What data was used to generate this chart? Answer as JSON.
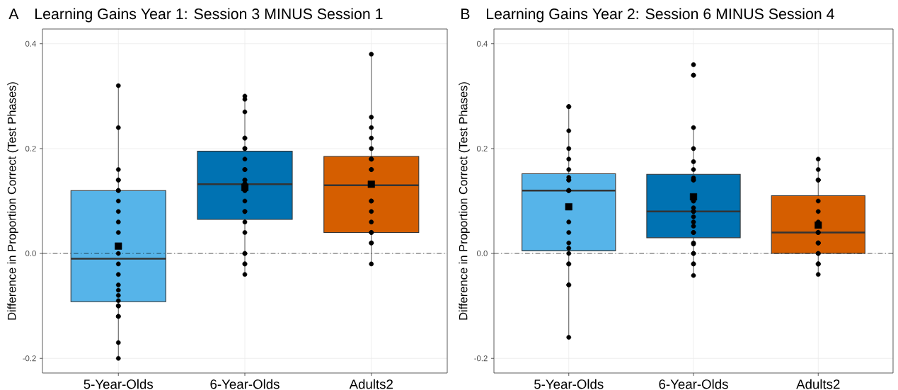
{
  "chart_data": [
    {
      "type": "box",
      "title": "Learning Gains Year 1: Session 3 MINUS Session 1",
      "annotations": [
        "A"
      ],
      "ylabel": "Difference in Proportion Correct (Test Phases)",
      "categories": [
        "5-Year-Olds",
        "6-Year-Olds",
        "Adults2"
      ],
      "colors": [
        "#56b4e9",
        "#0072b2",
        "#d55e00"
      ],
      "boxes": [
        {
          "low": -0.2,
          "q1": -0.092,
          "median": -0.01,
          "q3": 0.12,
          "high": 0.32,
          "mean": 0.014
        },
        {
          "low": -0.04,
          "q1": 0.065,
          "median": 0.132,
          "q3": 0.195,
          "high": 0.3,
          "mean": 0.126
        },
        {
          "low": -0.02,
          "q1": 0.04,
          "median": 0.13,
          "q3": 0.185,
          "high": 0.38,
          "mean": 0.132
        }
      ],
      "series": [
        {
          "type": "scatter",
          "color": "#000000",
          "marker": "circle",
          "x": [
            "5-Year-Olds",
            "5-Year-Olds",
            "5-Year-Olds",
            "5-Year-Olds",
            "5-Year-Olds",
            "5-Year-Olds",
            "5-Year-Olds",
            "5-Year-Olds",
            "5-Year-Olds",
            "5-Year-Olds",
            "5-Year-Olds",
            "5-Year-Olds",
            "5-Year-Olds",
            "5-Year-Olds",
            "5-Year-Olds",
            "5-Year-Olds",
            "5-Year-Olds",
            "5-Year-Olds",
            "5-Year-Olds",
            "5-Year-Olds",
            "5-Year-Olds",
            "5-Year-Olds",
            "5-Year-Olds",
            "5-Year-Olds",
            "6-Year-Olds",
            "6-Year-Olds",
            "6-Year-Olds",
            "6-Year-Olds",
            "6-Year-Olds",
            "6-Year-Olds",
            "6-Year-Olds",
            "6-Year-Olds",
            "6-Year-Olds",
            "6-Year-Olds",
            "6-Year-Olds",
            "6-Year-Olds",
            "6-Year-Olds",
            "6-Year-Olds",
            "6-Year-Olds",
            "6-Year-Olds",
            "6-Year-Olds",
            "6-Year-Olds",
            "6-Year-Olds",
            "6-Year-Olds",
            "6-Year-Olds",
            "6-Year-Olds",
            "6-Year-Olds",
            "6-Year-Olds",
            "6-Year-Olds",
            "6-Year-Olds",
            "Adults2",
            "Adults2",
            "Adults2",
            "Adults2",
            "Adults2",
            "Adults2",
            "Adults2",
            "Adults2",
            "Adults2",
            "Adults2",
            "Adults2",
            "Adults2",
            "Adults2",
            "Adults2",
            "Adults2",
            "Adults2",
            "Adults2",
            "Adults2",
            "Adults2"
          ],
          "values": [
            0.32,
            0.24,
            0.16,
            0.14,
            0.14,
            0.12,
            0.12,
            0.1,
            0.08,
            0.06,
            0.04,
            0.0,
            -0.02,
            -0.04,
            -0.06,
            -0.07,
            -0.08,
            -0.09,
            -0.1,
            -0.1,
            -0.12,
            -0.12,
            -0.17,
            -0.2,
            0.3,
            0.294,
            0.27,
            0.22,
            0.22,
            0.2,
            0.2,
            0.18,
            0.16,
            0.16,
            0.14,
            0.14,
            0.133,
            0.133,
            0.12,
            0.12,
            0.1,
            0.08,
            0.08,
            0.06,
            0.04,
            0.0,
            0.0,
            -0.02,
            -0.02,
            -0.04,
            0.38,
            0.26,
            0.24,
            0.22,
            0.2,
            0.18,
            0.18,
            0.18,
            0.16,
            0.16,
            0.1,
            0.1,
            0.08,
            0.06,
            0.04,
            0.04,
            0.02,
            0.02,
            -0.02
          ]
        }
      ],
      "ref_lines": [
        {
          "axis": "y",
          "value": 0,
          "line_style": "dashdot",
          "color": "#000000"
        }
      ],
      "ylim": [
        -0.228,
        0.428
      ],
      "yticks": [
        -0.2,
        {
          "value": 0,
          "label": "0.0"
        },
        0.2,
        0.4
      ],
      "grid": true
    },
    {
      "type": "box",
      "title": "Learning Gains Year 2: Session 6 MINUS Session 4",
      "annotations": [
        "B"
      ],
      "ylabel": "Difference in Proportion Correct (Test Phases)",
      "categories": [
        "5-Year-Olds",
        "6-Year-Olds",
        "Adults2"
      ],
      "colors": [
        "#56b4e9",
        "#0072b2",
        "#d55e00"
      ],
      "boxes": [
        {
          "low": -0.16,
          "q1": 0.005,
          "median": 0.12,
          "q3": 0.152,
          "high": 0.28,
          "mean": 0.089
        },
        {
          "low": -0.042,
          "q1": 0.03,
          "median": 0.08,
          "q3": 0.151,
          "high": 0.239,
          "mean": 0.108
        },
        {
          "low": -0.04,
          "q1": 0.0,
          "median": 0.04,
          "q3": 0.11,
          "high": 0.18,
          "mean": 0.054
        }
      ],
      "series": [
        {
          "type": "scatter",
          "color": "#000000",
          "marker": "circle",
          "x": [
            "5-Year-Olds",
            "5-Year-Olds",
            "5-Year-Olds",
            "5-Year-Olds",
            "5-Year-Olds",
            "5-Year-Olds",
            "5-Year-Olds",
            "5-Year-Olds",
            "5-Year-Olds",
            "5-Year-Olds",
            "5-Year-Olds",
            "5-Year-Olds",
            "5-Year-Olds",
            "5-Year-Olds",
            "5-Year-Olds",
            "5-Year-Olds",
            "5-Year-Olds",
            "5-Year-Olds",
            "5-Year-Olds",
            "5-Year-Olds",
            "5-Year-Olds",
            "5-Year-Olds",
            "6-Year-Olds",
            "6-Year-Olds",
            "6-Year-Olds",
            "6-Year-Olds",
            "6-Year-Olds",
            "6-Year-Olds",
            "6-Year-Olds",
            "6-Year-Olds",
            "6-Year-Olds",
            "6-Year-Olds",
            "6-Year-Olds",
            "6-Year-Olds",
            "6-Year-Olds",
            "6-Year-Olds",
            "6-Year-Olds",
            "6-Year-Olds",
            "6-Year-Olds",
            "6-Year-Olds",
            "6-Year-Olds",
            "6-Year-Olds",
            "6-Year-Olds",
            "6-Year-Olds",
            "6-Year-Olds",
            "6-Year-Olds",
            "6-Year-Olds",
            "6-Year-Olds",
            "6-Year-Olds",
            "Adults2",
            "Adults2",
            "Adults2",
            "Adults2",
            "Adults2",
            "Adults2",
            "Adults2",
            "Adults2",
            "Adults2",
            "Adults2",
            "Adults2",
            "Adults2",
            "Adults2",
            "Adults2",
            "Adults2",
            "Adults2",
            "Adults2",
            "Adults2",
            "Adults2",
            "Adults2"
          ],
          "values": [
            0.28,
            0.28,
            0.234,
            0.2,
            0.18,
            0.16,
            0.145,
            0.14,
            0.14,
            0.12,
            0.12,
            0.12,
            0.06,
            0.04,
            0.02,
            0.01,
            0.0,
            -0.02,
            -0.02,
            -0.06,
            -0.06,
            -0.16,
            0.36,
            0.34,
            0.34,
            0.24,
            0.2,
            0.175,
            0.16,
            0.144,
            0.14,
            0.14,
            0.1,
            0.1,
            0.087,
            0.08,
            0.08,
            0.07,
            0.06,
            0.052,
            0.04,
            0.04,
            0.02,
            0.018,
            0.0,
            0.0,
            -0.02,
            -0.02,
            -0.042,
            0.18,
            0.16,
            0.14,
            0.14,
            0.14,
            0.1,
            0.08,
            0.06,
            0.04,
            0.04,
            0.04,
            0.02,
            0.02,
            0.02,
            0.0,
            0.0,
            -0.02,
            -0.02,
            -0.02,
            -0.04
          ]
        }
      ],
      "ref_lines": [
        {
          "axis": "y",
          "value": 0,
          "line_style": "dashdot",
          "color": "#000000"
        }
      ],
      "ylim": [
        -0.228,
        0.428
      ],
      "yticks": [
        -0.2,
        {
          "value": 0,
          "label": "0.0"
        },
        0.2,
        0.4
      ],
      "grid": true
    }
  ]
}
